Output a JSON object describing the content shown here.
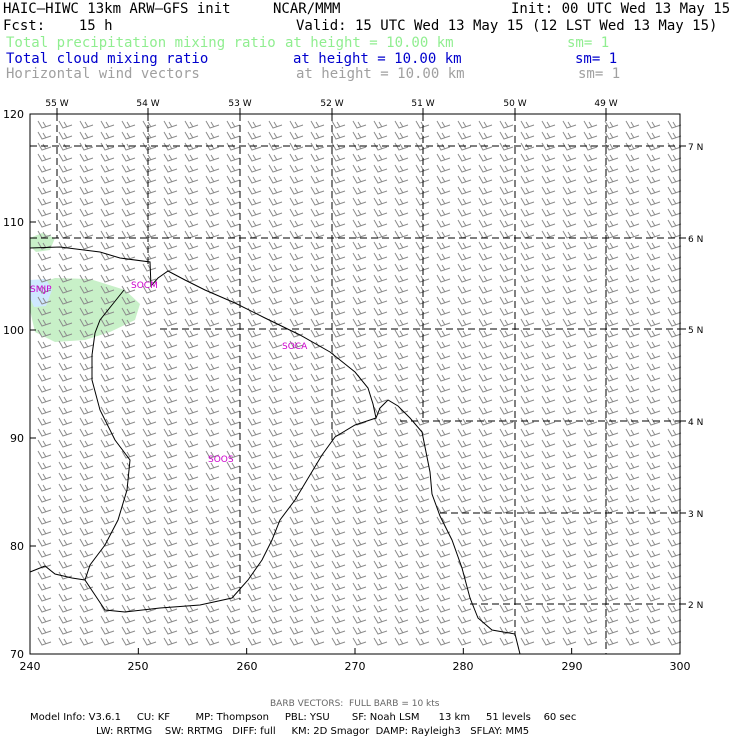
{
  "header": {
    "model": "HAIC–HIWC 13km ARW–GFS init",
    "center": "NCAR/MMM",
    "init": "Init: 00 UTC Wed 13 May 15",
    "fcst": "Fcst:    15 h",
    "valid": "Valid: 15 UTC Wed 13 May 15 (12 LST Wed 13 May 15)"
  },
  "legend": [
    {
      "name": "Total precipitation mixing ratio",
      "height": "at height = 10.00 km",
      "sm": "sm= 1",
      "color": "#90ee90"
    },
    {
      "name": "Total cloud mixing ratio",
      "height": "at height = 10.00 km",
      "sm": "sm= 1",
      "color": "#0000cd"
    },
    {
      "name": "Horizontal wind vectors",
      "height": "at height = 10.00 km",
      "sm": "sm= 1",
      "color": "#a0a0a0"
    }
  ],
  "map": {
    "x_ticks": [
      "240",
      "250",
      "260",
      "270",
      "280",
      "290",
      "300"
    ],
    "y_ticks": [
      "70",
      "80",
      "90",
      "100",
      "110",
      "120"
    ],
    "lon_labels": [
      "55 W",
      "54 W",
      "53 W",
      "52 W",
      "51 W",
      "50 W",
      "49 W"
    ],
    "lat_labels": [
      "7 N",
      "6 N",
      "5 N",
      "4 N",
      "3 N",
      "2 N"
    ],
    "stations": [
      "SMJP",
      "SOCM",
      "SOCA",
      "SOOS"
    ],
    "colors": {
      "precip": "#c8f0c8",
      "cloud": "#cfe8ff",
      "barb": "#8c8c8c",
      "station": "#cc00cc",
      "coast": "#000000"
    }
  },
  "footer": {
    "barb_note": "BARB VECTORS:  FULL BARB = 10 kts",
    "line1": "Model Info: V3.6.1     CU: KF        MP: Thompson     PBL: YSU       SF: Noah LSM      13 km     51 levels    60 sec",
    "line2": "LW: RRTMG    SW: RRTMG   DIFF: full     KM: 2D Smagor  DAMP: Rayleigh3   SFLAY: MM5"
  }
}
